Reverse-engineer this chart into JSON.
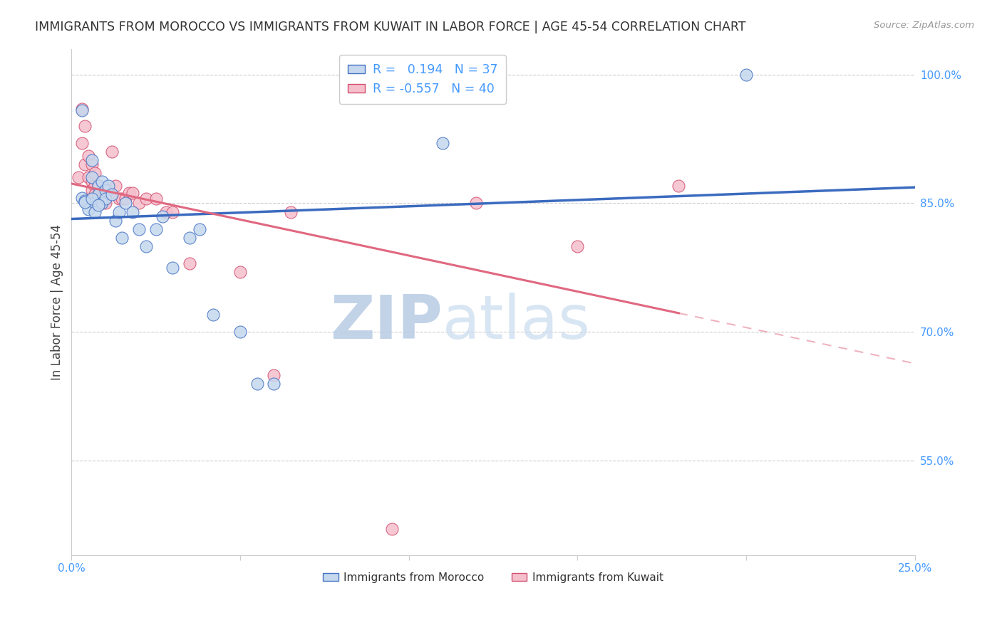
{
  "title": "IMMIGRANTS FROM MOROCCO VS IMMIGRANTS FROM KUWAIT IN LABOR FORCE | AGE 45-54 CORRELATION CHART",
  "source": "Source: ZipAtlas.com",
  "ylabel": "In Labor Force | Age 45-54",
  "xlim": [
    0.0,
    0.25
  ],
  "ylim": [
    0.44,
    1.03
  ],
  "x_tick_positions": [
    0.0,
    0.05,
    0.1,
    0.15,
    0.2,
    0.25
  ],
  "x_tick_labels": [
    "0.0%",
    "",
    "",
    "",
    "",
    "25.0%"
  ],
  "y_tick_vals_right": [
    1.0,
    0.85,
    0.7,
    0.55
  ],
  "y_tick_labels_right": [
    "100.0%",
    "85.0%",
    "70.0%",
    "55.0%"
  ],
  "morocco_color_face": "#c5d8ee",
  "morocco_color_edge": "#4472c4",
  "kuwait_color_face": "#f5bfcc",
  "kuwait_color_edge": "#d45070",
  "morocco_line_color": "#3b6bbf",
  "kuwait_line_color": "#e06880",
  "watermark_color": "#d0e2f4",
  "grid_color": "#cccccc",
  "tick_color": "#4499ff",
  "title_color": "#333333",
  "morocco_x": [
    0.003,
    0.003,
    0.004,
    0.005,
    0.006,
    0.006,
    0.007,
    0.007,
    0.008,
    0.008,
    0.009,
    0.009,
    0.01,
    0.01,
    0.011,
    0.012,
    0.013,
    0.014,
    0.015,
    0.016,
    0.018,
    0.02,
    0.022,
    0.025,
    0.027,
    0.03,
    0.035,
    0.038,
    0.042,
    0.05,
    0.055,
    0.06,
    0.11,
    0.2,
    0.004,
    0.006,
    0.008
  ],
  "morocco_y": [
    0.856,
    0.958,
    0.853,
    0.843,
    0.9,
    0.88,
    0.85,
    0.84,
    0.87,
    0.86,
    0.85,
    0.875,
    0.865,
    0.855,
    0.87,
    0.86,
    0.83,
    0.84,
    0.81,
    0.85,
    0.84,
    0.82,
    0.8,
    0.82,
    0.835,
    0.775,
    0.81,
    0.82,
    0.72,
    0.7,
    0.64,
    0.64,
    0.92,
    1.0,
    0.851,
    0.855,
    0.848
  ],
  "kuwait_x": [
    0.002,
    0.003,
    0.003,
    0.004,
    0.004,
    0.005,
    0.005,
    0.006,
    0.006,
    0.006,
    0.007,
    0.007,
    0.007,
    0.008,
    0.008,
    0.009,
    0.009,
    0.01,
    0.01,
    0.011,
    0.012,
    0.013,
    0.014,
    0.015,
    0.016,
    0.017,
    0.018,
    0.02,
    0.022,
    0.025,
    0.028,
    0.03,
    0.035,
    0.05,
    0.06,
    0.065,
    0.095,
    0.12,
    0.15,
    0.18
  ],
  "kuwait_y": [
    0.88,
    0.96,
    0.92,
    0.94,
    0.895,
    0.905,
    0.88,
    0.875,
    0.865,
    0.895,
    0.885,
    0.87,
    0.86,
    0.87,
    0.86,
    0.855,
    0.85,
    0.86,
    0.85,
    0.865,
    0.91,
    0.87,
    0.855,
    0.855,
    0.855,
    0.862,
    0.862,
    0.85,
    0.855,
    0.855,
    0.84,
    0.84,
    0.78,
    0.77,
    0.65,
    0.84,
    0.47,
    0.85,
    0.8,
    0.87
  ]
}
